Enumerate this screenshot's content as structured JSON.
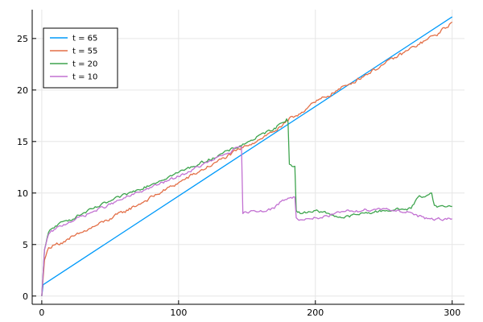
{
  "chart_data": {
    "type": "line",
    "title": "",
    "xlabel": "",
    "ylabel": "",
    "xlim": [
      -7,
      309
    ],
    "ylim": [
      -0.8,
      27.8
    ],
    "xticks": [
      0,
      100,
      200,
      300
    ],
    "yticks": [
      0,
      5,
      10,
      15,
      20,
      25
    ],
    "grid": true,
    "legend_position": "top-left",
    "series": [
      {
        "name": "t = 65",
        "color": "#009AFA",
        "noise": 0,
        "x": [
          0,
          1,
          300
        ],
        "y": [
          0,
          1.1,
          27.1
        ]
      },
      {
        "name": "t = 55",
        "color": "#E36F47",
        "noise": 0.15,
        "x": [
          0,
          2,
          5,
          10,
          20,
          30,
          50,
          75,
          100,
          125,
          150,
          175,
          180,
          200,
          225,
          250,
          275,
          290,
          300
        ],
        "y": [
          0,
          3.5,
          4.7,
          5.0,
          5.5,
          6.2,
          7.5,
          9.2,
          11.0,
          12.8,
          14.6,
          16.4,
          17.0,
          18.8,
          20.6,
          22.5,
          24.4,
          25.5,
          26.6
        ]
      },
      {
        "name": "t = 20",
        "color": "#3EA44E",
        "noise": 0.12,
        "x": [
          0,
          2,
          5,
          10,
          20,
          50,
          75,
          100,
          125,
          150,
          170,
          179,
          180,
          181,
          185,
          186,
          189,
          190,
          195,
          200,
          210,
          220,
          230,
          250,
          270,
          275,
          282,
          285,
          287,
          290,
          300
        ],
        "y": [
          0,
          4.5,
          6.2,
          6.8,
          7.4,
          9.2,
          10.6,
          12.0,
          13.4,
          14.9,
          16.3,
          17.2,
          16.9,
          12.8,
          12.6,
          8.3,
          8.0,
          8.0,
          8.2,
          8.3,
          8.0,
          7.6,
          7.9,
          8.3,
          8.5,
          9.6,
          9.8,
          10.0,
          8.8,
          8.7,
          8.7
        ]
      },
      {
        "name": "t = 10",
        "color": "#C271D2",
        "noise": 0.12,
        "x": [
          0,
          2,
          5,
          10,
          20,
          50,
          75,
          100,
          125,
          146,
          147,
          150,
          160,
          170,
          175,
          180,
          185,
          186,
          190,
          200,
          210,
          220,
          230,
          250,
          270,
          275,
          280,
          300
        ],
        "y": [
          0,
          4.5,
          6.0,
          6.5,
          7.2,
          8.9,
          10.3,
          11.6,
          13.2,
          14.5,
          8.0,
          8.1,
          8.3,
          8.5,
          9.2,
          9.5,
          9.6,
          7.6,
          7.4,
          7.6,
          7.7,
          8.2,
          8.3,
          8.5,
          8.1,
          7.7,
          7.5,
          7.5
        ]
      }
    ]
  }
}
